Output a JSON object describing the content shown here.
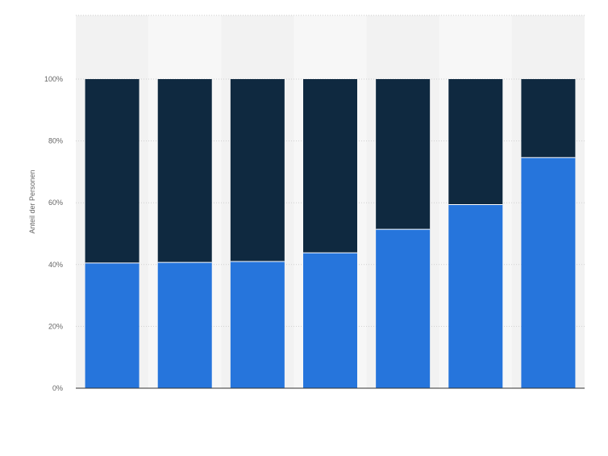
{
  "chart_data": {
    "type": "bar",
    "stacked": true,
    "categories": [
      "",
      "",
      "",
      "",
      "",
      "",
      ""
    ],
    "series": [
      {
        "values": [
          40.5,
          40.7,
          41.0,
          43.8,
          51.4,
          59.4,
          74.6
        ],
        "color": "#2675DC"
      },
      {
        "values": [
          59.5,
          59.3,
          59.0,
          56.2,
          48.6,
          40.6,
          25.4
        ],
        "color": "#0F2940"
      }
    ],
    "ylabel": "Anteil der Personen",
    "ylim": [
      0,
      100
    ],
    "yticks": [
      0,
      20,
      40,
      60,
      80,
      100
    ],
    "ytick_labels": [
      "0%",
      "20%",
      "40%",
      "60%",
      "80%",
      "100%"
    ],
    "grid": true,
    "legend": "none"
  },
  "colors": {
    "grid": "#cfcfcf",
    "axis": "#333333",
    "band_light": "#f7f7f7",
    "band_dark": "#f2f2f2"
  }
}
